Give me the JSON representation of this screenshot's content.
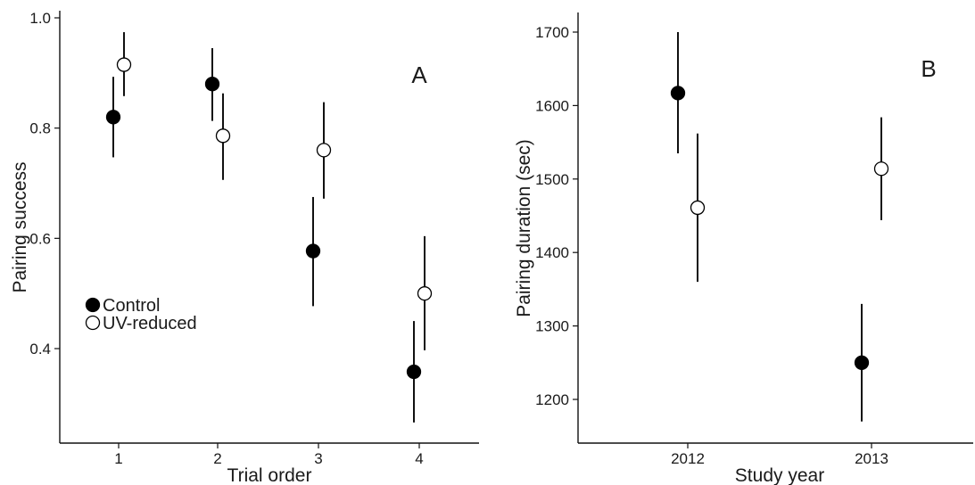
{
  "chart_data": [
    {
      "type": "scatter",
      "panel_label": "A",
      "xlabel": "Trial order",
      "ylabel": "Pairing success",
      "categories": [
        "1",
        "2",
        "3",
        "4"
      ],
      "yticks": [
        "0.4",
        "0.6",
        "0.8",
        "1.0"
      ],
      "ylim": [
        0.27,
        1.0
      ],
      "legend": {
        "placement": "middle-left",
        "entries": [
          "Control",
          "UV-reduced"
        ]
      },
      "grid": false,
      "series": [
        {
          "name": "Control",
          "marker": "filled-circle",
          "color": "#000000",
          "values": [
            0.82,
            0.88,
            0.577,
            0.358
          ],
          "lower": [
            0.747,
            0.813,
            0.477,
            0.266
          ],
          "upper": [
            0.893,
            0.945,
            0.675,
            0.45
          ]
        },
        {
          "name": "UV-reduced",
          "marker": "open-circle",
          "color": "#ffffff",
          "values": [
            0.915,
            0.786,
            0.76,
            0.5
          ],
          "lower": [
            0.858,
            0.706,
            0.672,
            0.397
          ],
          "upper": [
            0.974,
            0.863,
            0.847,
            0.604
          ]
        }
      ]
    },
    {
      "type": "scatter",
      "panel_label": "B",
      "xlabel": "Study year",
      "ylabel": "Pairing duration (sec)",
      "categories": [
        "2012",
        "2013"
      ],
      "yticks": [
        "1200",
        "1300",
        "1400",
        "1500",
        "1600",
        "1700"
      ],
      "ylim": [
        1140,
        1725
      ],
      "grid": false,
      "series": [
        {
          "name": "Control",
          "marker": "filled-circle",
          "color": "#000000",
          "values": [
            1617,
            1250
          ],
          "lower": [
            1535,
            1170
          ],
          "upper": [
            1700,
            1330
          ]
        },
        {
          "name": "UV-reduced",
          "marker": "open-circle",
          "color": "#ffffff",
          "values": [
            1461,
            1514
          ],
          "lower": [
            1360,
            1444
          ],
          "upper": [
            1562,
            1584
          ]
        }
      ]
    }
  ]
}
